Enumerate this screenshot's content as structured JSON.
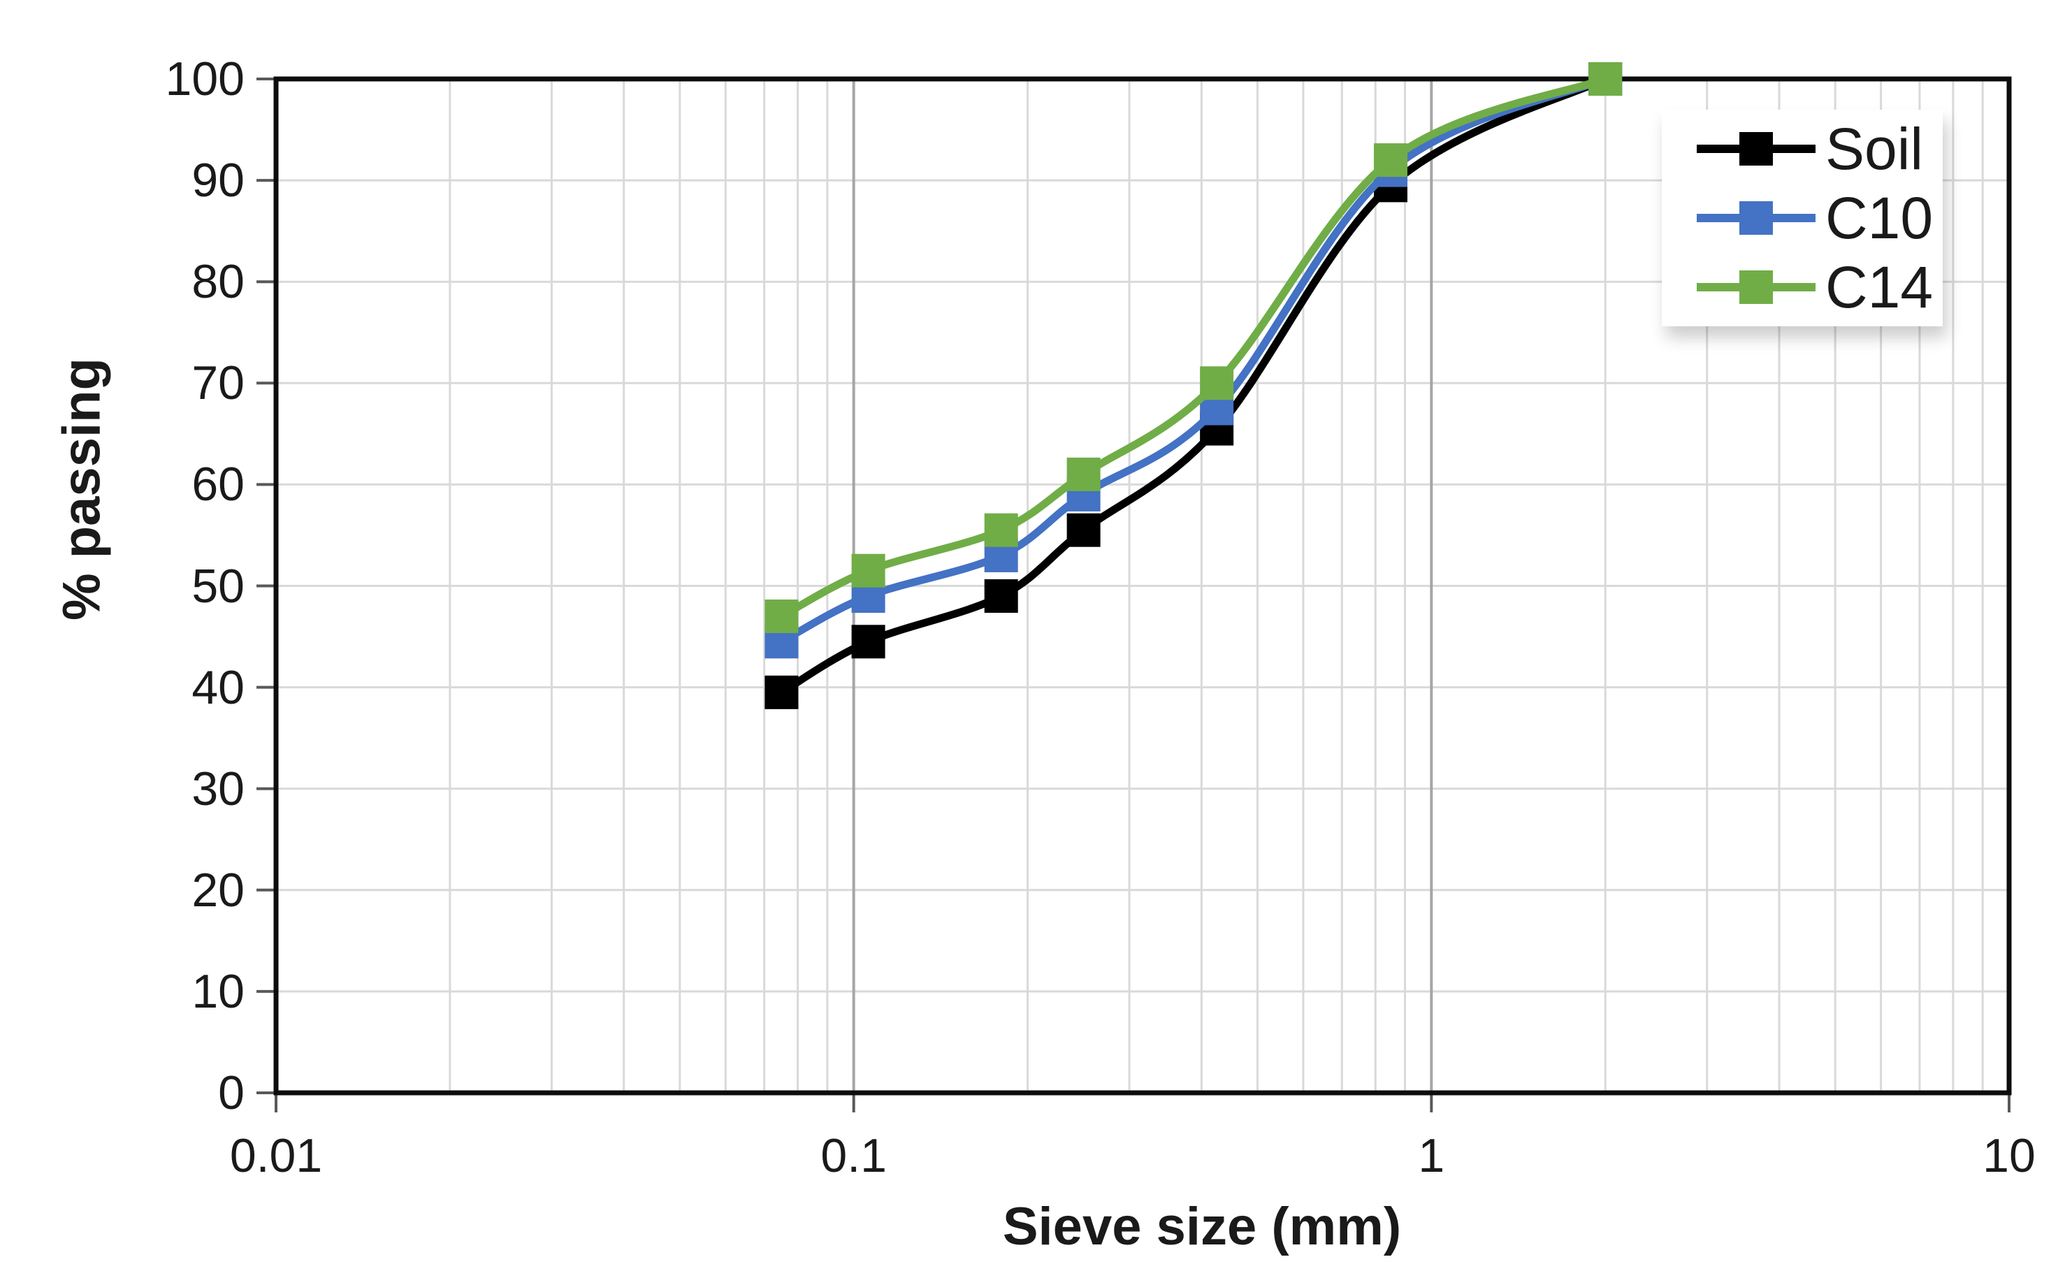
{
  "chart_data": {
    "type": "line",
    "title": "",
    "xlabel": "Sieve size (mm)",
    "ylabel": "% passing",
    "x_scale": "log",
    "xlim": [
      0.01,
      10
    ],
    "ylim": [
      0,
      100
    ],
    "x_ticks": [
      {
        "value": 0.01,
        "label": "0.01"
      },
      {
        "value": 0.1,
        "label": "0.1"
      },
      {
        "value": 1,
        "label": "1"
      },
      {
        "value": 10,
        "label": "10"
      }
    ],
    "y_ticks": [
      {
        "value": 0,
        "label": "0"
      },
      {
        "value": 10,
        "label": "10"
      },
      {
        "value": 20,
        "label": "20"
      },
      {
        "value": 30,
        "label": "30"
      },
      {
        "value": 40,
        "label": "40"
      },
      {
        "value": 50,
        "label": "50"
      },
      {
        "value": 60,
        "label": "60"
      },
      {
        "value": 70,
        "label": "70"
      },
      {
        "value": 80,
        "label": "80"
      },
      {
        "value": 90,
        "label": "90"
      },
      {
        "value": 100,
        "label": "100"
      }
    ],
    "x": [
      0.075,
      0.106,
      0.18,
      0.25,
      0.425,
      0.85,
      2
    ],
    "series": [
      {
        "name": "Soil",
        "color": "#000000",
        "values": [
          39.5,
          44.5,
          49,
          55.5,
          65.5,
          89.5,
          100
        ]
      },
      {
        "name": "C10",
        "color": "#4472C4",
        "values": [
          44.5,
          49,
          53,
          59,
          67.5,
          91,
          100
        ]
      },
      {
        "name": "C14",
        "color": "#70AD47",
        "values": [
          47,
          51.5,
          55.5,
          61,
          70,
          92,
          100
        ]
      }
    ],
    "marker": "square",
    "line_style": "smooth",
    "legend_position": "top-right",
    "grid": {
      "minor_color": "#D9D9D9",
      "major_color": "#A6A6A6",
      "horizontal_color": "#D9D9D9",
      "border_color": "#0d0d0d",
      "tick_color": "#595959",
      "grid_on": true
    }
  }
}
